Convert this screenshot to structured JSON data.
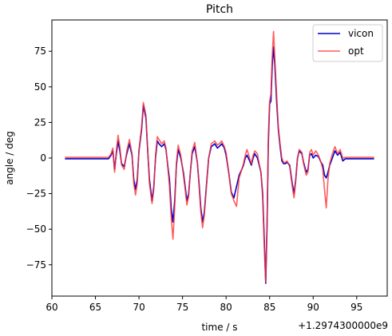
{
  "chart_data": {
    "type": "line",
    "title": "Pitch",
    "xlabel": "time / s",
    "ylabel": "angle / deg",
    "x_offset_label": "+1.2974300000e9",
    "xlim": [
      60.0,
      98.5
    ],
    "ylim": [
      -97,
      97
    ],
    "x_ticks": [
      60,
      65,
      70,
      75,
      80,
      85,
      90,
      95
    ],
    "x_tick_labels": [
      "60",
      "65",
      "70",
      "75",
      "80",
      "85",
      "90",
      "95"
    ],
    "y_ticks": [
      -75,
      -50,
      -25,
      0,
      25,
      50,
      75
    ],
    "y_tick_labels": [
      "−75",
      "−50",
      "−25",
      "0",
      "25",
      "50",
      "75"
    ],
    "grid": false,
    "legend_position": "top-right",
    "series": [
      {
        "name": "vicon",
        "color": "#0000cc",
        "points": [
          [
            61.5,
            -0.5
          ],
          [
            63.0,
            -0.5
          ],
          [
            65.0,
            -0.5
          ],
          [
            66.5,
            -0.5
          ],
          [
            66.8,
            2.0
          ],
          [
            67.0,
            5.0
          ],
          [
            67.2,
            -8.0
          ],
          [
            67.4,
            3.0
          ],
          [
            67.6,
            12.0
          ],
          [
            67.8,
            5.0
          ],
          [
            68.0,
            -4.0
          ],
          [
            68.3,
            -6.0
          ],
          [
            68.6,
            3.0
          ],
          [
            68.9,
            10.0
          ],
          [
            69.2,
            2.0
          ],
          [
            69.4,
            -15.0
          ],
          [
            69.6,
            -22.0
          ],
          [
            69.8,
            -15.0
          ],
          [
            70.0,
            5.0
          ],
          [
            70.3,
            20.0
          ],
          [
            70.5,
            37.0
          ],
          [
            70.8,
            28.0
          ],
          [
            71.0,
            5.0
          ],
          [
            71.2,
            -15.0
          ],
          [
            71.5,
            -30.0
          ],
          [
            71.7,
            -20.0
          ],
          [
            71.9,
            0.0
          ],
          [
            72.1,
            12.0
          ],
          [
            72.3,
            10.0
          ],
          [
            72.6,
            8.0
          ],
          [
            72.9,
            10.0
          ],
          [
            73.1,
            6.0
          ],
          [
            73.3,
            -5.0
          ],
          [
            73.5,
            -15.0
          ],
          [
            73.7,
            -35.0
          ],
          [
            73.9,
            -45.0
          ],
          [
            74.1,
            -30.0
          ],
          [
            74.3,
            -5.0
          ],
          [
            74.5,
            6.0
          ],
          [
            74.8,
            0.0
          ],
          [
            75.1,
            -10.0
          ],
          [
            75.3,
            -20.0
          ],
          [
            75.5,
            -30.0
          ],
          [
            75.7,
            -25.0
          ],
          [
            75.9,
            -10.0
          ],
          [
            76.1,
            3.0
          ],
          [
            76.4,
            8.0
          ],
          [
            76.7,
            -3.0
          ],
          [
            76.9,
            -18.0
          ],
          [
            77.1,
            -35.0
          ],
          [
            77.3,
            -45.0
          ],
          [
            77.5,
            -38.0
          ],
          [
            77.8,
            -15.0
          ],
          [
            78.0,
            0.0
          ],
          [
            78.3,
            8.0
          ],
          [
            78.7,
            10.0
          ],
          [
            79.0,
            7.0
          ],
          [
            79.2,
            8.0
          ],
          [
            79.5,
            10.0
          ],
          [
            79.8,
            7.0
          ],
          [
            80.0,
            2.0
          ],
          [
            80.3,
            -10.0
          ],
          [
            80.6,
            -24.0
          ],
          [
            80.9,
            -28.0
          ],
          [
            81.2,
            -20.0
          ],
          [
            81.5,
            -12.0
          ],
          [
            81.8,
            -8.0
          ],
          [
            82.0,
            -5.0
          ],
          [
            82.2,
            0.0
          ],
          [
            82.4,
            2.0
          ],
          [
            82.7,
            -2.0
          ],
          [
            82.9,
            -5.0
          ],
          [
            83.1,
            0.0
          ],
          [
            83.3,
            3.0
          ],
          [
            83.6,
            0.0
          ],
          [
            83.8,
            -5.0
          ],
          [
            84.0,
            -10.0
          ],
          [
            84.2,
            -25.0
          ],
          [
            84.4,
            -60.0
          ],
          [
            84.55,
            -88.0
          ],
          [
            84.7,
            -50.0
          ],
          [
            84.85,
            10.0
          ],
          [
            85.0,
            38.0
          ],
          [
            85.15,
            40.0
          ],
          [
            85.3,
            65.0
          ],
          [
            85.45,
            78.0
          ],
          [
            85.6,
            65.0
          ],
          [
            85.8,
            40.0
          ],
          [
            86.0,
            20.0
          ],
          [
            86.2,
            8.0
          ],
          [
            86.4,
            -2.0
          ],
          [
            86.6,
            -4.0
          ],
          [
            86.8,
            -4.0
          ],
          [
            87.0,
            -3.0
          ],
          [
            87.3,
            -5.0
          ],
          [
            87.6,
            -18.0
          ],
          [
            87.8,
            -25.0
          ],
          [
            88.0,
            -15.0
          ],
          [
            88.2,
            0.0
          ],
          [
            88.4,
            5.0
          ],
          [
            88.7,
            3.0
          ],
          [
            88.9,
            -3.0
          ],
          [
            89.2,
            -10.0
          ],
          [
            89.4,
            -8.0
          ],
          [
            89.6,
            2.0
          ],
          [
            89.8,
            3.0
          ],
          [
            90.0,
            0.0
          ],
          [
            90.3,
            2.0
          ],
          [
            90.6,
            1.0
          ],
          [
            90.9,
            -3.0
          ],
          [
            91.1,
            -5.0
          ],
          [
            91.3,
            -12.0
          ],
          [
            91.5,
            -14.0
          ],
          [
            91.7,
            -10.0
          ],
          [
            91.9,
            -5.0
          ],
          [
            92.2,
            0.0
          ],
          [
            92.5,
            5.0
          ],
          [
            92.8,
            2.0
          ],
          [
            93.1,
            4.0
          ],
          [
            93.4,
            -2.0
          ],
          [
            93.7,
            -0.5
          ],
          [
            95.0,
            -0.5
          ],
          [
            97.0,
            -0.5
          ]
        ]
      },
      {
        "name": "opt",
        "color": "#ff3333",
        "points": [
          [
            61.5,
            0.5
          ],
          [
            63.0,
            0.5
          ],
          [
            65.0,
            0.5
          ],
          [
            66.5,
            0.5
          ],
          [
            66.8,
            3.0
          ],
          [
            67.0,
            7.0
          ],
          [
            67.2,
            -10.0
          ],
          [
            67.4,
            5.0
          ],
          [
            67.6,
            16.0
          ],
          [
            67.8,
            8.0
          ],
          [
            68.0,
            -5.0
          ],
          [
            68.3,
            -8.0
          ],
          [
            68.6,
            5.0
          ],
          [
            68.9,
            13.0
          ],
          [
            69.2,
            3.0
          ],
          [
            69.4,
            -18.0
          ],
          [
            69.6,
            -26.0
          ],
          [
            69.8,
            -18.0
          ],
          [
            70.0,
            6.0
          ],
          [
            70.3,
            22.0
          ],
          [
            70.5,
            39.0
          ],
          [
            70.8,
            30.0
          ],
          [
            71.0,
            6.0
          ],
          [
            71.2,
            -18.0
          ],
          [
            71.5,
            -32.0
          ],
          [
            71.7,
            -22.0
          ],
          [
            71.9,
            2.0
          ],
          [
            72.1,
            15.0
          ],
          [
            72.3,
            13.0
          ],
          [
            72.6,
            10.0
          ],
          [
            72.9,
            12.0
          ],
          [
            73.1,
            7.0
          ],
          [
            73.3,
            -6.0
          ],
          [
            73.5,
            -20.0
          ],
          [
            73.7,
            -42.0
          ],
          [
            73.9,
            -57.0
          ],
          [
            74.1,
            -35.0
          ],
          [
            74.3,
            -3.0
          ],
          [
            74.5,
            9.0
          ],
          [
            74.8,
            2.0
          ],
          [
            75.1,
            -12.0
          ],
          [
            75.3,
            -22.0
          ],
          [
            75.5,
            -33.0
          ],
          [
            75.7,
            -27.0
          ],
          [
            75.9,
            -10.0
          ],
          [
            76.1,
            5.0
          ],
          [
            76.4,
            11.0
          ],
          [
            76.7,
            -3.0
          ],
          [
            76.9,
            -20.0
          ],
          [
            77.1,
            -38.0
          ],
          [
            77.3,
            -49.0
          ],
          [
            77.5,
            -40.0
          ],
          [
            77.8,
            -16.0
          ],
          [
            78.0,
            0.0
          ],
          [
            78.3,
            10.0
          ],
          [
            78.7,
            12.0
          ],
          [
            79.0,
            9.0
          ],
          [
            79.2,
            10.0
          ],
          [
            79.5,
            12.0
          ],
          [
            79.8,
            8.0
          ],
          [
            80.0,
            4.0
          ],
          [
            80.3,
            -10.0
          ],
          [
            80.6,
            -25.0
          ],
          [
            80.9,
            -30.0
          ],
          [
            81.2,
            -34.0
          ],
          [
            81.5,
            -14.0
          ],
          [
            81.8,
            -8.0
          ],
          [
            82.0,
            -4.0
          ],
          [
            82.2,
            2.0
          ],
          [
            82.4,
            6.0
          ],
          [
            82.7,
            0.0
          ],
          [
            82.9,
            -4.0
          ],
          [
            83.1,
            2.0
          ],
          [
            83.3,
            5.0
          ],
          [
            83.6,
            3.0
          ],
          [
            83.8,
            -4.0
          ],
          [
            84.0,
            -10.0
          ],
          [
            84.2,
            -28.0
          ],
          [
            84.4,
            -65.0
          ],
          [
            84.55,
            -87.0
          ],
          [
            84.7,
            -45.0
          ],
          [
            84.85,
            15.0
          ],
          [
            85.0,
            40.0
          ],
          [
            85.15,
            45.0
          ],
          [
            85.3,
            72.0
          ],
          [
            85.45,
            89.0
          ],
          [
            85.6,
            70.0
          ],
          [
            85.8,
            45.0
          ],
          [
            86.0,
            22.0
          ],
          [
            86.2,
            10.0
          ],
          [
            86.4,
            0.0
          ],
          [
            86.6,
            -3.0
          ],
          [
            86.8,
            -3.0
          ],
          [
            87.0,
            -2.0
          ],
          [
            87.3,
            -6.0
          ],
          [
            87.6,
            -20.0
          ],
          [
            87.8,
            -28.0
          ],
          [
            88.0,
            -16.0
          ],
          [
            88.2,
            0.0
          ],
          [
            88.4,
            6.0
          ],
          [
            88.7,
            4.0
          ],
          [
            88.9,
            -4.0
          ],
          [
            89.2,
            -12.0
          ],
          [
            89.4,
            -10.0
          ],
          [
            89.6,
            4.0
          ],
          [
            89.8,
            6.0
          ],
          [
            90.0,
            2.0
          ],
          [
            90.3,
            5.0
          ],
          [
            90.6,
            2.0
          ],
          [
            90.9,
            -3.0
          ],
          [
            91.1,
            -8.0
          ],
          [
            91.3,
            -22.0
          ],
          [
            91.5,
            -35.0
          ],
          [
            91.7,
            -15.0
          ],
          [
            91.9,
            -4.0
          ],
          [
            92.2,
            3.0
          ],
          [
            92.5,
            8.0
          ],
          [
            92.8,
            3.0
          ],
          [
            93.1,
            6.0
          ],
          [
            93.4,
            0.0
          ],
          [
            93.7,
            0.5
          ],
          [
            95.0,
            0.5
          ],
          [
            97.0,
            0.5
          ]
        ]
      }
    ]
  }
}
